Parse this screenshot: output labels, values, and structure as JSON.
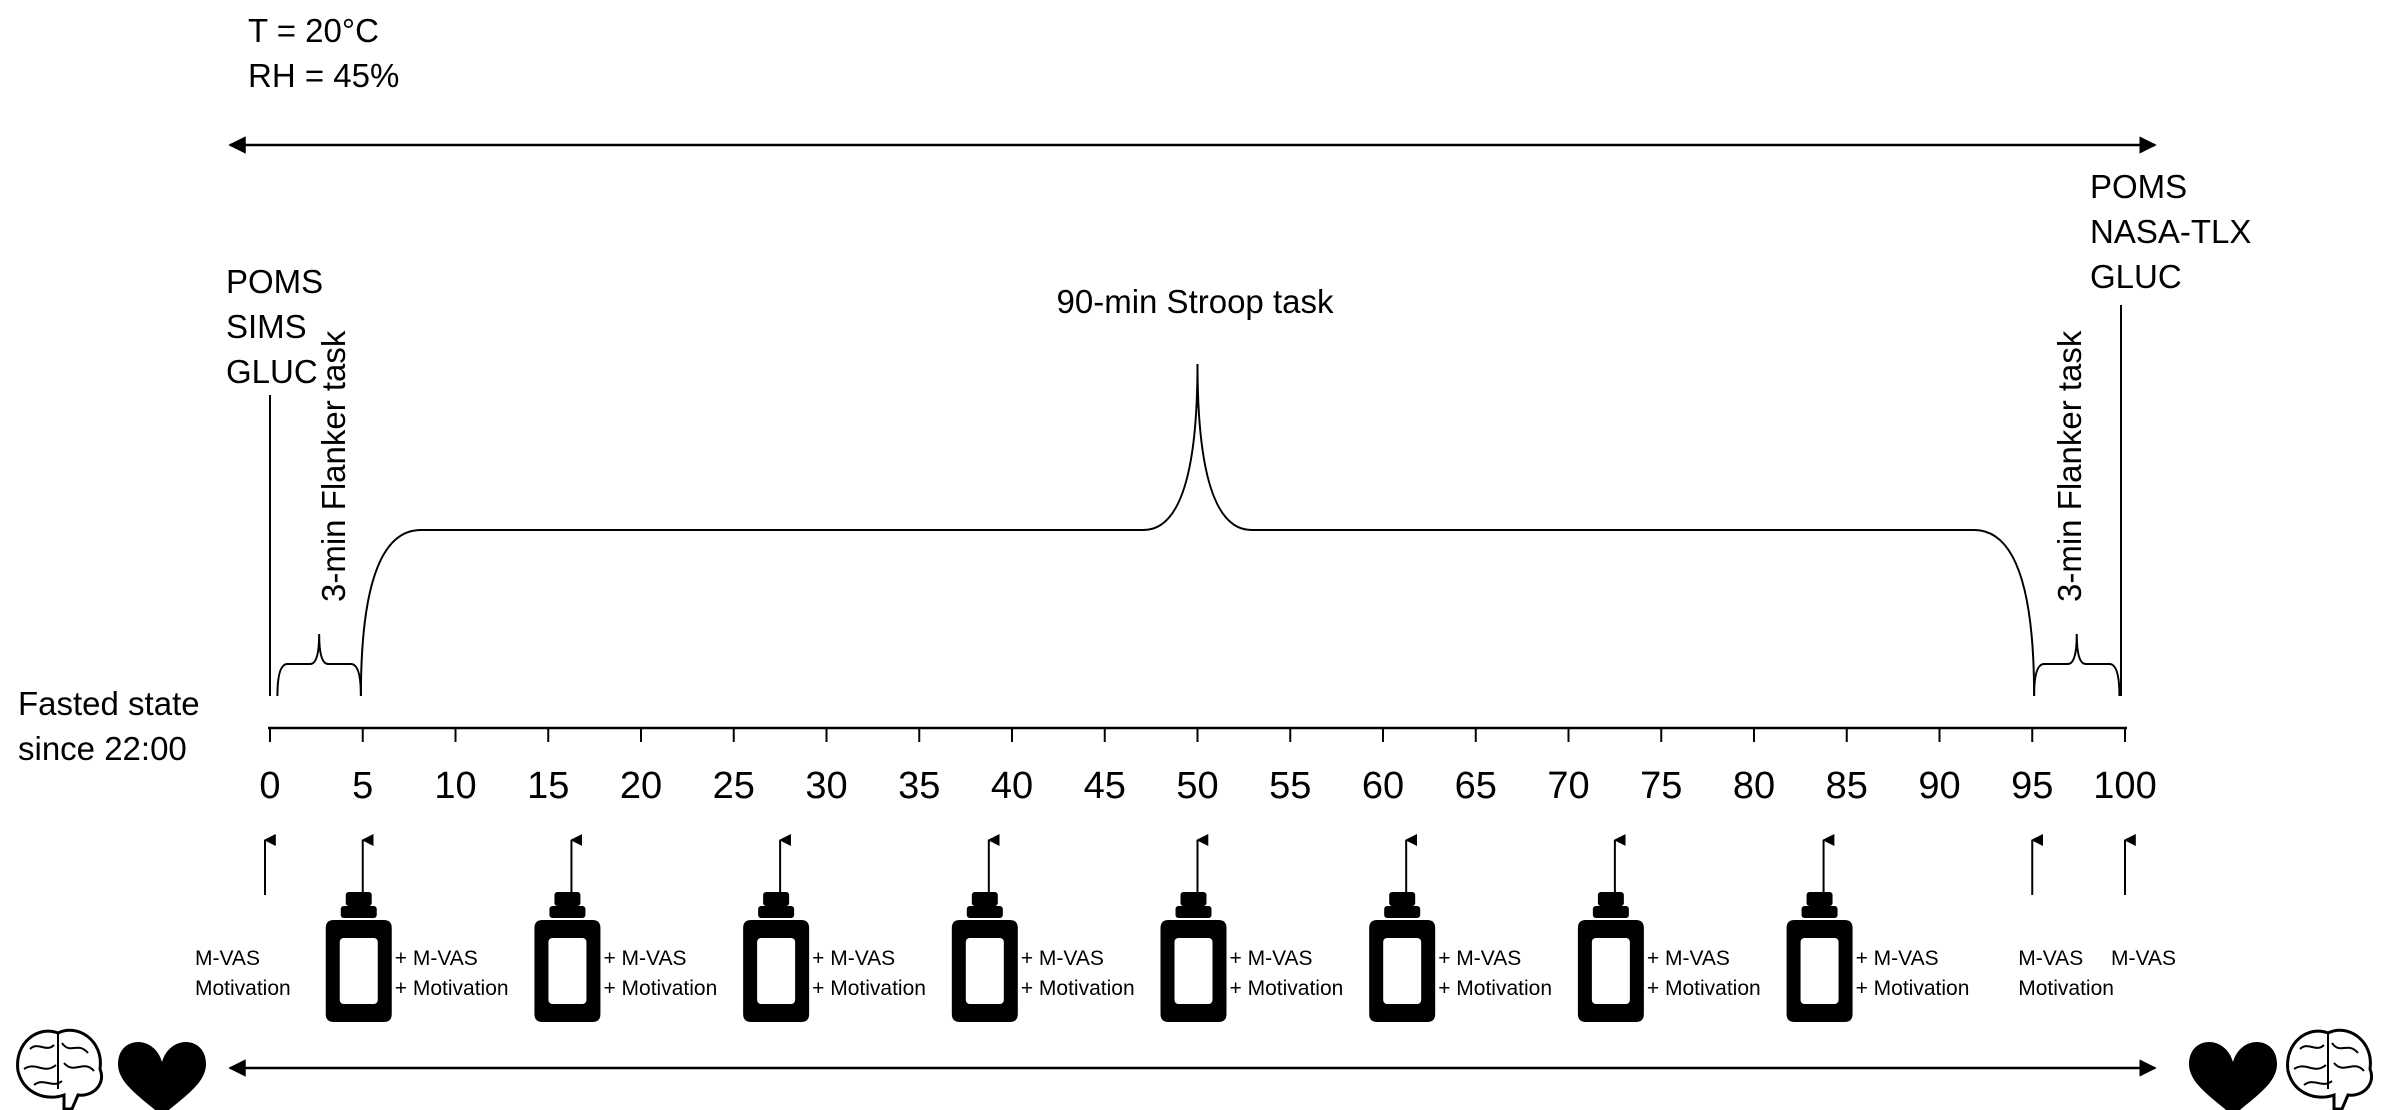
{
  "conditions": {
    "temperature": "T = 20°C",
    "humidity": "RH = 45%"
  },
  "pre_measures": [
    "POMS",
    "SIMS",
    "GLUC"
  ],
  "post_measures": [
    "POMS",
    "NASA-TLX",
    "GLUC"
  ],
  "flanker_pre_label": "3-min Flanker task",
  "flanker_post_label": "3-min Flanker task",
  "stroop_label": "90-min Stroop task",
  "fasted_label": [
    "Fasted state",
    "since 22:00"
  ],
  "axis": {
    "min": 0,
    "max": 100,
    "step": 5,
    "ticks": [
      "0",
      "5",
      "10",
      "15",
      "20",
      "25",
      "30",
      "35",
      "40",
      "45",
      "50",
      "55",
      "60",
      "65",
      "70",
      "75",
      "80",
      "85",
      "90",
      "95",
      "100"
    ]
  },
  "measures": {
    "plain_points": [
      {
        "t": 0,
        "lines": [
          "M-VAS",
          "Motivation"
        ]
      },
      {
        "t": 95,
        "lines": [
          "M-VAS",
          "Motivation"
        ]
      },
      {
        "t": 100,
        "lines": [
          "M-VAS"
        ]
      }
    ],
    "bottle_points": [
      5,
      16.25,
      27.5,
      38.75,
      50,
      61.25,
      72.5,
      83.75
    ],
    "bottle_lines": [
      "+ M-VAS",
      "+ Motivation"
    ]
  },
  "icons": {
    "left": [
      "brain-icon",
      "heart-icon"
    ],
    "right": [
      "heart-icon",
      "brain-icon"
    ]
  }
}
